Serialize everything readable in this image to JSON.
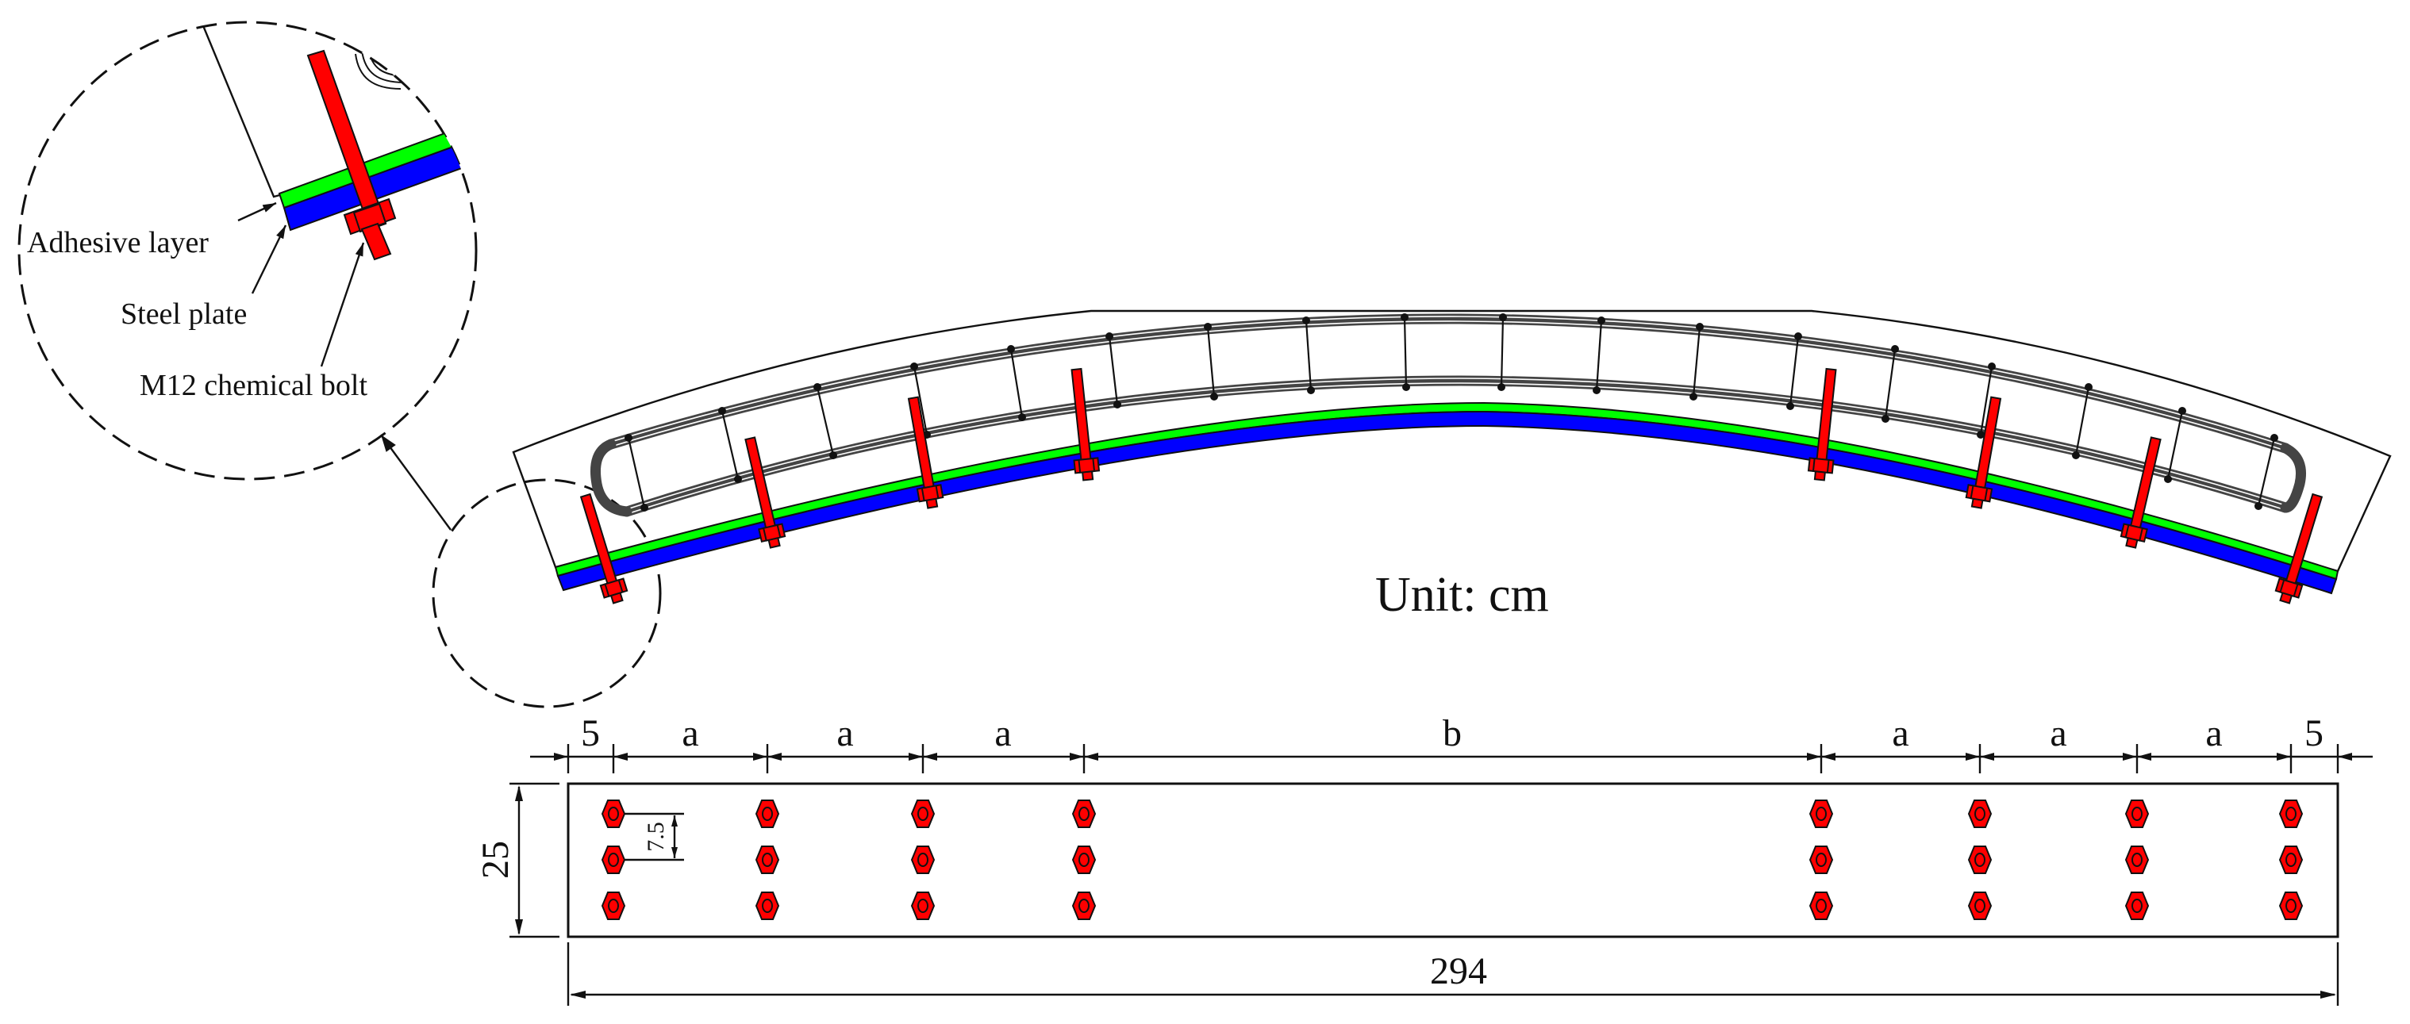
{
  "figure": {
    "unit_label": "Unit: cm",
    "colors": {
      "adhesive": "#00ff00",
      "steel_plate": "#0000ff",
      "bolt": "#ff0000",
      "line": "#111111",
      "rebar": "#444444"
    }
  },
  "detail_callout": {
    "labels": {
      "adhesive": "Adhesive layer",
      "plate": "Steel plate",
      "bolt": "M12 chemical bolt"
    }
  },
  "elevation": {
    "bolt_count": 8,
    "stirrup_count": 18
  },
  "plan": {
    "top_dims": [
      "5",
      "a",
      "a",
      "a",
      "b",
      "a",
      "a",
      "a",
      "5"
    ],
    "width_dim": "25",
    "row_spacing_dim": "7.5",
    "total_length_dim": "294",
    "bolt_rows": 3,
    "bolt_columns": 8
  }
}
